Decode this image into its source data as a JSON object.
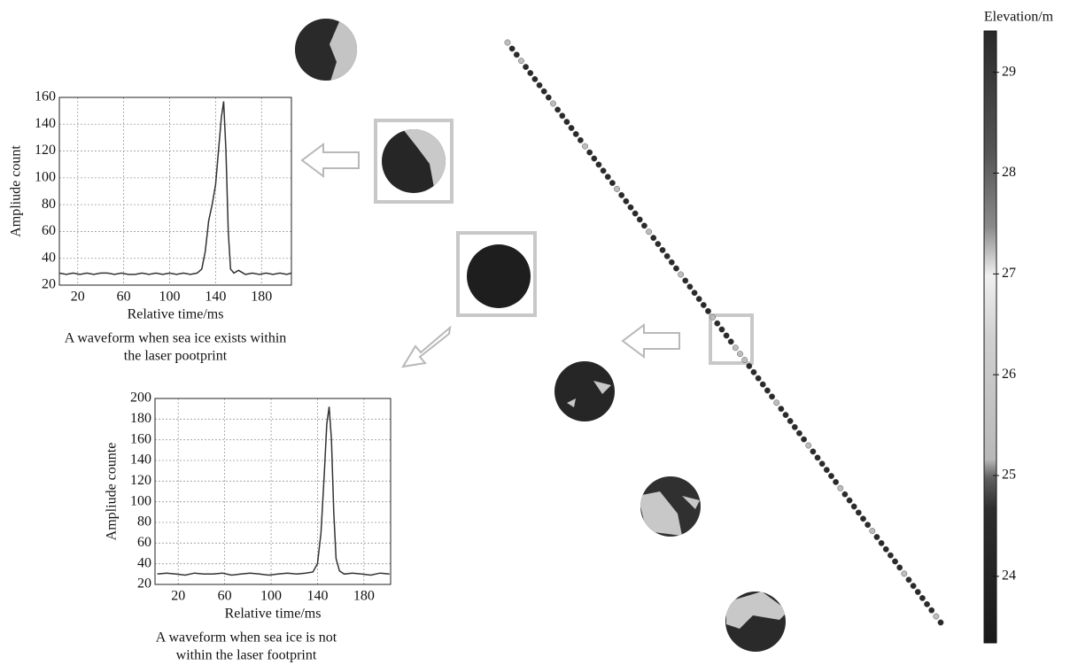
{
  "chart_data": [
    {
      "type": "line",
      "x": [
        4,
        10,
        16,
        22,
        28,
        34,
        40,
        46,
        52,
        58,
        64,
        70,
        76,
        82,
        88,
        94,
        100,
        106,
        112,
        118,
        124,
        128,
        131,
        134,
        137,
        140,
        143,
        145,
        147,
        149,
        151,
        153,
        156,
        160,
        166,
        172,
        178,
        184,
        190,
        196,
        202,
        206
      ],
      "values": [
        29,
        28,
        29,
        28,
        29,
        28,
        29,
        29,
        28,
        29,
        28,
        28,
        29,
        28,
        29,
        28,
        29,
        28,
        29,
        28,
        29,
        32,
        45,
        68,
        80,
        95,
        125,
        145,
        157,
        120,
        60,
        32,
        29,
        31,
        28,
        29,
        28,
        29,
        28,
        29,
        28,
        29
      ],
      "color": "#333333",
      "xlim": [
        4,
        206
      ],
      "xticks": [
        20,
        60,
        100,
        140,
        180
      ],
      "ylim": [
        20,
        160
      ],
      "yticks": [
        20,
        40,
        60,
        80,
        100,
        120,
        140,
        160
      ],
      "grid": true,
      "x_label": "Relative  time/ms",
      "y_label": "Ampliude  count",
      "caption": [
        "A waveform when sea  ice exists within",
        "the laser pootprint"
      ]
    },
    {
      "type": "line",
      "x": [
        2,
        10,
        18,
        26,
        34,
        42,
        50,
        58,
        66,
        74,
        82,
        90,
        98,
        106,
        114,
        122,
        130,
        136,
        140,
        143,
        146,
        148,
        150,
        152,
        154,
        156,
        159,
        163,
        170,
        178,
        186,
        194,
        202
      ],
      "values": [
        30,
        31,
        30,
        29,
        31,
        30,
        30,
        31,
        29,
        30,
        31,
        30,
        29,
        30,
        31,
        30,
        31,
        32,
        40,
        70,
        130,
        175,
        192,
        160,
        90,
        45,
        33,
        30,
        31,
        30,
        29,
        31,
        30
      ],
      "color": "#333333",
      "xlim": [
        0,
        203
      ],
      "xticks": [
        20,
        60,
        100,
        140,
        180
      ],
      "ylim": [
        20,
        200
      ],
      "yticks": [
        20,
        40,
        60,
        80,
        100,
        120,
        140,
        160,
        180,
        200
      ],
      "grid": true,
      "x_label": "Relative  time/ms",
      "y_label": "Ampliude  counte",
      "caption": [
        "A waveform when sea ice is not",
        "within the laser footprint"
      ]
    }
  ],
  "colorbar": {
    "title": "Elevation/m",
    "lim": [
      23.34,
      29.41
    ],
    "ticks": [
      24,
      25,
      26,
      27,
      28,
      29
    ]
  }
}
